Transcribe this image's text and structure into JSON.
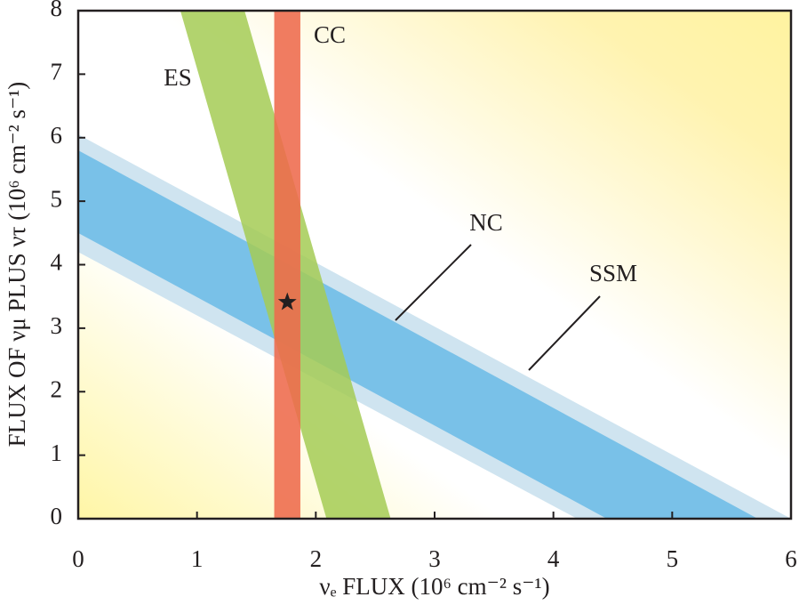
{
  "chart_data": {
    "type": "band",
    "xlabel": "νₑ FLUX (10⁶ cm⁻² s⁻¹)",
    "ylabel": "FLUX OF νμ PLUS ντ (10⁶ cm⁻² s⁻¹)",
    "xlim": [
      0,
      6
    ],
    "ylim": [
      0,
      8
    ],
    "xticks": [
      0,
      1,
      2,
      3,
      4,
      5,
      6
    ],
    "yticks": [
      0,
      1,
      2,
      3,
      4,
      5,
      6,
      7,
      8
    ],
    "bands": [
      {
        "name": "SSM",
        "color": "#cfe4f0",
        "x": [
          0,
          4.2,
          6.0,
          0
        ],
        "y": [
          4.2,
          0,
          0,
          6.05
        ]
      },
      {
        "name": "NC",
        "color": "#79c1e8",
        "x": [
          0,
          4.45,
          5.72,
          0
        ],
        "y": [
          4.5,
          0,
          0,
          5.8
        ]
      },
      {
        "name": "ES",
        "color": "#a4cb55",
        "x": [
          2.09,
          2.63,
          1.4,
          0.86
        ],
        "y": [
          0,
          0,
          8,
          8
        ]
      },
      {
        "name": "CC",
        "color": "#ee6a4c",
        "x": [
          1.65,
          1.87,
          1.87,
          1.65
        ],
        "y": [
          0,
          0,
          8,
          8
        ]
      }
    ],
    "point": {
      "x": 1.76,
      "y": 3.41
    }
  }
}
